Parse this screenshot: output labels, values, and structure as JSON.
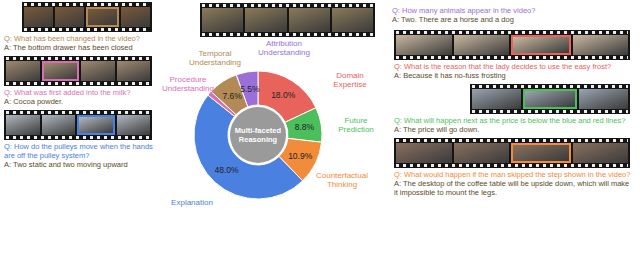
{
  "chart_data": {
    "type": "pie",
    "title": "Multi-faceted Reasoning",
    "categories": [
      "Domain Expertise",
      "Future Prediction",
      "Counterfactual Thinking",
      "Explanation",
      "Procedure Understanding",
      "Temporal Understanding",
      "Attribution Understanding"
    ],
    "values": [
      18.0,
      8.8,
      10.9,
      48.0,
      1.2,
      7.6,
      5.5
    ],
    "value_labels": [
      "18.0%",
      "8.8%",
      "10.9%",
      "48.0%",
      null,
      "7.6%",
      "5.5%"
    ],
    "colors": [
      "#e8635b",
      "#4cbf5c",
      "#f28b3a",
      "#4a80e0",
      "#d96fb3",
      "#b38a55",
      "#9a6fd8"
    ],
    "data_labels": true
  },
  "examples": [
    {
      "category": "Temporal Understanding",
      "question": "Q: What has been changed in the video?",
      "answer": "A: The bottom drawer has been closed"
    },
    {
      "category": "Attribution Understanding",
      "question": "Q: How many animals appear in the video?",
      "answer": "A: Two. There are a horse and a dog"
    },
    {
      "category": "Domain Expertise",
      "question": "Q: What is the reason that the lady decides to use the easy frost?",
      "answer": "A: Because it has no-fuss frosting"
    },
    {
      "category": "Future Prediction",
      "question": "Q: What will happen next as the price is below the blue and red lines?",
      "answer": "A: The price will go down."
    },
    {
      "category": "Counterfactual Thinking",
      "question": "Q: What would happen if the man skipped the step shown in the video?",
      "answer": "A: The desktop of the coffee table will be upside down, which will make it impossible to mount the legs."
    },
    {
      "category": "Procedure Understanding",
      "question": "Q: What was first added into the milk?",
      "answer": "A: Cocoa powder."
    },
    {
      "category": "Explanation",
      "question": "Q: How do the pulleys move when the hands are off the pulley system?",
      "answer": "A: Two static and two moving upward"
    }
  ]
}
